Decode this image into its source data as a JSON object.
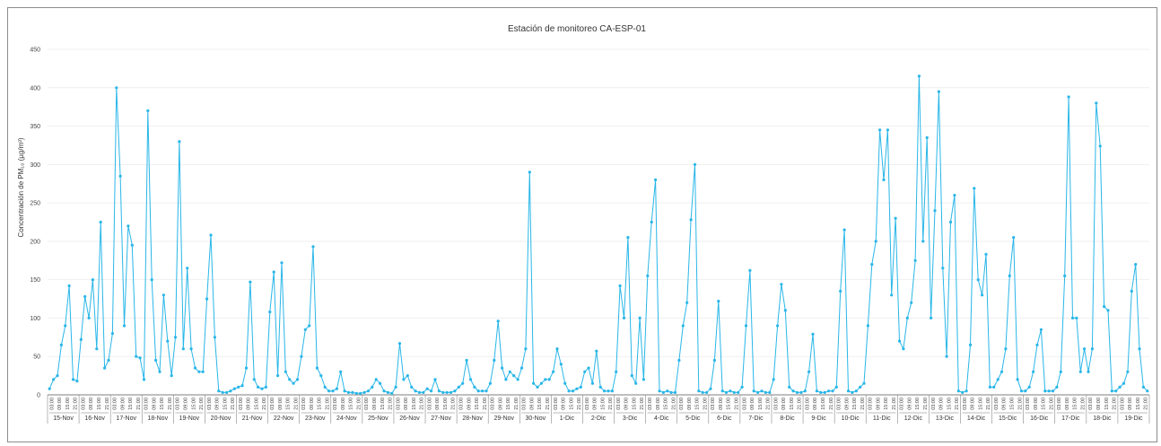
{
  "chart_data": {
    "type": "line",
    "title": "Estación de monitoreo CA-ESP-01",
    "ylabel": "Concentración de PM₁₀ (µg/m³)",
    "xlabel": "",
    "ylim": [
      0,
      450
    ],
    "yticks": [
      0,
      50,
      100,
      150,
      200,
      250,
      300,
      350,
      400,
      450
    ],
    "grid": "horizontal",
    "legend": "none",
    "color": "#29b6e8",
    "hour_ticks": [
      "03:00",
      "09:00",
      "15:00",
      "21:00"
    ],
    "days": [
      "15-Nov",
      "16-Nov",
      "17-Nov",
      "18-Nov",
      "19-Nov",
      "20-Nov",
      "21-Nov",
      "22-Nov",
      "23-Nov",
      "24-Nov",
      "25-Nov",
      "26-Nov",
      "27-Nov",
      "28-Nov",
      "29-Nov",
      "30-Nov",
      "1-Dic",
      "2-Dic",
      "3-Dic",
      "4-Dic",
      "5-Dic",
      "6-Dic",
      "7-Dic",
      "8-Dic",
      "9-Dic",
      "10-Dic",
      "11-Dic",
      "12-Dic",
      "13-Dic",
      "14-Dic",
      "15-Dic",
      "16-Dic",
      "17-Dic",
      "18-Dic",
      "19-Dic"
    ],
    "series": [
      {
        "sampling": "every 3 hours, starting 15-Nov 00:00",
        "values": [
          [
            8,
            20,
            25,
            65,
            90,
            142,
            20,
            18
          ],
          [
            72,
            128,
            100,
            150,
            60,
            225,
            35,
            45
          ],
          [
            80,
            400,
            285,
            90,
            220,
            195,
            50,
            48
          ],
          [
            20,
            370,
            150,
            45,
            30,
            130,
            70,
            25
          ],
          [
            75,
            330,
            60,
            165,
            60,
            35,
            30,
            30
          ],
          [
            125,
            208,
            75,
            5,
            3,
            3,
            5,
            8
          ],
          [
            10,
            12,
            35,
            147,
            20,
            10,
            8,
            10
          ],
          [
            108,
            160,
            25,
            172,
            30,
            20,
            15,
            20
          ],
          [
            50,
            85,
            90,
            193,
            35,
            25,
            10,
            5
          ],
          [
            5,
            8,
            30,
            5,
            3,
            3,
            2,
            2
          ],
          [
            3,
            5,
            10,
            20,
            15,
            5,
            3,
            2
          ],
          [
            10,
            67,
            20,
            25,
            10,
            5,
            3,
            3
          ],
          [
            8,
            5,
            20,
            5,
            3,
            3,
            3,
            5
          ],
          [
            10,
            15,
            45,
            20,
            10,
            5,
            5,
            5
          ],
          [
            15,
            45,
            96,
            35,
            20,
            30,
            25,
            20
          ],
          [
            35,
            60,
            290,
            15,
            10,
            15,
            20,
            20
          ],
          [
            30,
            60,
            40,
            15,
            5,
            5,
            8,
            10
          ],
          [
            30,
            35,
            15,
            57,
            10,
            5,
            5,
            5
          ],
          [
            30,
            142,
            100,
            205,
            25,
            15,
            100,
            20
          ],
          [
            155,
            225,
            280,
            5,
            3,
            5,
            3,
            3
          ],
          [
            45,
            90,
            120,
            228,
            300,
            5,
            3,
            3
          ],
          [
            8,
            45,
            122,
            5,
            3,
            5,
            3,
            3
          ],
          [
            10,
            90,
            162,
            5,
            3,
            5,
            3,
            3
          ],
          [
            20,
            90,
            144,
            110,
            10,
            5,
            3,
            3
          ],
          [
            5,
            30,
            79,
            5,
            3,
            3,
            5,
            5
          ],
          [
            10,
            135,
            215,
            5,
            3,
            5,
            10,
            15
          ],
          [
            90,
            170,
            200,
            345,
            280,
            345,
            130,
            230
          ],
          [
            70,
            60,
            100,
            120,
            175,
            415,
            200,
            335
          ],
          [
            100,
            240,
            395,
            165,
            50,
            225,
            260,
            5
          ],
          [
            3,
            5,
            65,
            269,
            150,
            130,
            183,
            10
          ],
          [
            10,
            20,
            30,
            60,
            155,
            205,
            20,
            5
          ],
          [
            5,
            10,
            30,
            65,
            85,
            5,
            5,
            5
          ],
          [
            10,
            30,
            155,
            388,
            100,
            100,
            30,
            60
          ],
          [
            30,
            60,
            380,
            324,
            115,
            110,
            5,
            5
          ],
          [
            10,
            15,
            30,
            135,
            170,
            60,
            10,
            5
          ]
        ]
      }
    ]
  }
}
